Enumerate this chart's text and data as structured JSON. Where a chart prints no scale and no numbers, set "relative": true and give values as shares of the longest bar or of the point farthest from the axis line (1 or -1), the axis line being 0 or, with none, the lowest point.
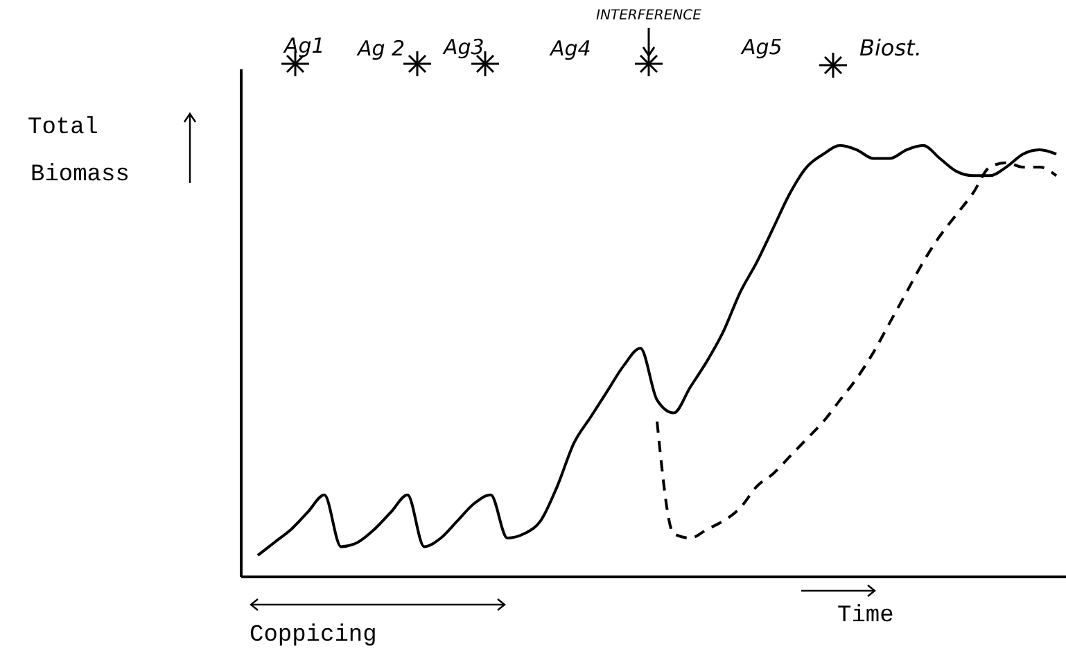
{
  "chart_data": {
    "type": "line",
    "relative": true,
    "xlabel": "Time",
    "ylabel": "Total Biomass",
    "categories": [
      null,
      null,
      null,
      null,
      null,
      null,
      null,
      null,
      null,
      null,
      null,
      null,
      null,
      null,
      null,
      null,
      null,
      null,
      null,
      null,
      null,
      null,
      null,
      null,
      null,
      null,
      null,
      null,
      null,
      null,
      null,
      null,
      null,
      null,
      null,
      null,
      null,
      null,
      null,
      null,
      null,
      null,
      null,
      null,
      null,
      null,
      null,
      null,
      null
    ],
    "series": [
      {
        "color": "#000000",
        "line_style": "solid",
        "values": [
          0.05,
          0.08,
          0.11,
          0.15,
          0.19,
          0.07,
          0.08,
          0.11,
          0.15,
          0.19,
          0.07,
          0.09,
          0.13,
          0.17,
          0.19,
          0.09,
          0.1,
          0.13,
          0.21,
          0.31,
          0.37,
          0.43,
          0.49,
          0.53,
          0.41,
          0.38,
          0.44,
          0.5,
          0.57,
          0.66,
          0.73,
          0.81,
          0.89,
          0.95,
          0.98,
          1.0,
          0.99,
          0.97,
          0.97,
          0.99,
          1.0,
          0.97,
          0.94,
          0.93,
          0.93,
          0.95,
          0.98,
          0.99,
          0.98
        ]
      },
      {
        "color": "#000000",
        "line_style": "dashed",
        "values": [
          null,
          null,
          null,
          null,
          null,
          null,
          null,
          null,
          null,
          null,
          null,
          null,
          null,
          null,
          null,
          null,
          null,
          null,
          null,
          null,
          null,
          null,
          null,
          null,
          0.36,
          0.1,
          0.09,
          0.11,
          0.13,
          0.16,
          0.21,
          0.24,
          0.28,
          0.32,
          0.36,
          0.41,
          0.46,
          0.52,
          0.59,
          0.66,
          0.73,
          0.79,
          0.84,
          0.89,
          0.95,
          0.96,
          0.95,
          0.95,
          0.93
        ]
      }
    ],
    "marker": "none",
    "annotations": [
      "Ag1",
      "Ag 2",
      "Ag3",
      "Ag4",
      "Ag5",
      "Biost.",
      "INTERFERENCE",
      "Coppicing"
    ]
  }
}
